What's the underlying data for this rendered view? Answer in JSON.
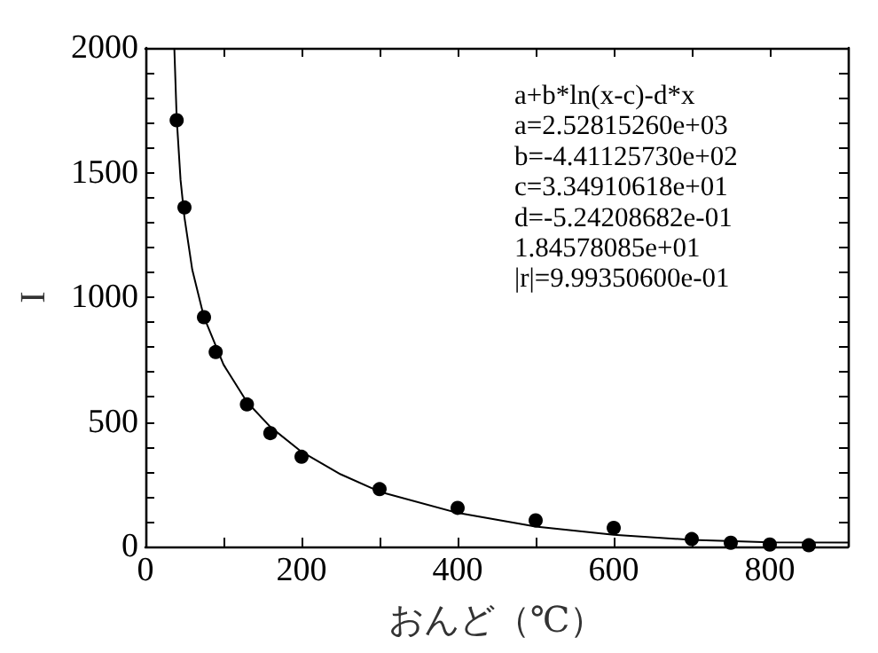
{
  "chart_data": {
    "type": "scatter",
    "xlabel": "おんど（℃）",
    "ylabel": "I",
    "annotations": [
      "a+b*ln(x-c)-d*x",
      "a=2.52815260e+03",
      "b=-4.41125730e+02",
      "c=3.34910618e+01",
      "d=-5.24208682e-01",
      "1.84578085e+01",
      "|r|=9.99350600e-01"
    ],
    "series": [
      {
        "color": "#000000",
        "marker": "circle",
        "x": [
          40,
          50,
          75,
          90,
          130,
          160,
          200,
          300,
          400,
          500,
          600,
          700,
          750,
          800,
          850
        ],
        "values": [
          1710,
          1360,
          920,
          780,
          570,
          455,
          360,
          230,
          155,
          105,
          75,
          30,
          15,
          8,
          5
        ]
      },
      {
        "type": "line",
        "color": "#000000",
        "marker": "none",
        "line_style": "solid",
        "x": [
          37,
          40,
          45,
          50,
          60,
          75,
          100,
          130,
          160,
          200,
          250,
          300,
          400,
          500,
          600,
          700,
          800,
          900
        ],
        "values": [
          2000,
          1720,
          1470,
          1320,
          1110,
          920,
          730,
          580,
          480,
          380,
          290,
          220,
          135,
          80,
          47,
          27,
          17,
          16
        ]
      }
    ],
    "xlim": [
      0,
      900
    ],
    "xticks": [
      0,
      {
        "value": 100,
        "label": null
      },
      200,
      {
        "value": 300,
        "label": null
      },
      400,
      {
        "value": 500,
        "label": null
      },
      600,
      {
        "value": 700,
        "label": null
      },
      800
    ],
    "ylim": [
      0,
      2000
    ],
    "yticks": [
      0,
      {
        "value": 100,
        "label": null
      },
      {
        "value": 200,
        "label": null
      },
      {
        "value": 300,
        "label": null
      },
      {
        "value": 400,
        "label": null
      },
      500,
      {
        "value": 600,
        "label": null
      },
      {
        "value": 700,
        "label": null
      },
      {
        "value": 800,
        "label": null
      },
      {
        "value": 900,
        "label": null
      },
      1000,
      {
        "value": 1100,
        "label": null
      },
      {
        "value": 1200,
        "label": null
      },
      {
        "value": 1300,
        "label": null
      },
      {
        "value": 1400,
        "label": null
      },
      1500,
      {
        "value": 1600,
        "label": null
      },
      {
        "value": 1700,
        "label": null
      },
      {
        "value": 1800,
        "label": null
      },
      {
        "value": 1900,
        "label": null
      },
      2000
    ],
    "grid": false
  }
}
